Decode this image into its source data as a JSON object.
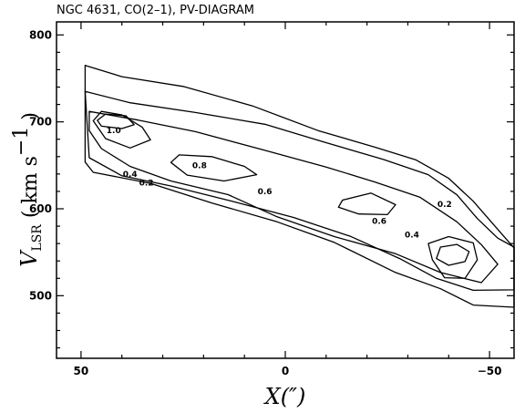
{
  "chart_data": {
    "type": "contour",
    "title": "NGC 4631, CO(2–1), PV-DIAGRAM",
    "xlabel": "X(″)",
    "ylabel": {
      "main": "V",
      "sub": "LSR",
      "unit_open": " ( km s",
      "unit_exp": "−1",
      "unit_close": " )"
    },
    "xlim": [
      56,
      -56
    ],
    "ylim": [
      428,
      815
    ],
    "x_ticks": [
      50,
      0,
      -50
    ],
    "x_tick_labels": [
      "50",
      "0",
      "−50"
    ],
    "y_ticks": [
      500,
      600,
      700,
      800
    ],
    "y_tick_labels": [
      "500",
      "600",
      "700",
      "800"
    ],
    "contour_levels": [
      0.2,
      0.4,
      0.6,
      0.8,
      1.0
    ],
    "contour_labels": [
      {
        "text": "1.0",
        "x": 42,
        "y": 690
      },
      {
        "text": "0.8",
        "x": 21,
        "y": 650
      },
      {
        "text": "0.6",
        "x": 5,
        "y": 620
      },
      {
        "text": "0.4",
        "x": 38,
        "y": 640
      },
      {
        "text": "0.2",
        "x": 34,
        "y": 630
      },
      {
        "text": "0.6",
        "x": -23,
        "y": 586
      },
      {
        "text": "0.4",
        "x": -31,
        "y": 570
      },
      {
        "text": "0.2",
        "x": -39,
        "y": 605
      }
    ],
    "contours": [
      {
        "level": 0.2,
        "points": [
          [
            49,
            765
          ],
          [
            40,
            752
          ],
          [
            25,
            742
          ],
          [
            8,
            717
          ],
          [
            -8,
            690
          ],
          [
            -22,
            672
          ],
          [
            -32,
            655
          ],
          [
            -40,
            635
          ],
          [
            -46,
            610
          ],
          [
            -52,
            575
          ],
          [
            -56,
            555
          ],
          [
            -56,
            488
          ],
          [
            -46,
            488
          ],
          [
            -38,
            508
          ],
          [
            -27,
            528
          ],
          [
            -12,
            560
          ],
          [
            2,
            585
          ],
          [
            18,
            608
          ],
          [
            33,
            628
          ],
          [
            47,
            642
          ],
          [
            49,
            655
          ]
        ]
      },
      {
        "level": 0.4,
        "points": [
          [
            49,
            735
          ],
          [
            38,
            722
          ],
          [
            22,
            712
          ],
          [
            5,
            696
          ],
          [
            -10,
            676
          ],
          [
            -24,
            658
          ],
          [
            -35,
            638
          ],
          [
            -42,
            616
          ],
          [
            -47,
            590
          ],
          [
            -52,
            565
          ],
          [
            -56,
            556
          ],
          [
            -56,
            508
          ],
          [
            -46,
            505
          ],
          [
            -37,
            520
          ],
          [
            -28,
            544
          ],
          [
            -16,
            567
          ],
          [
            -2,
            590
          ],
          [
            13,
            610
          ],
          [
            28,
            625
          ],
          [
            40,
            638
          ],
          [
            48,
            660
          ]
        ]
      },
      {
        "level": 0.6,
        "points": [
          [
            48,
            712
          ],
          [
            36,
            702
          ],
          [
            22,
            690
          ],
          [
            5,
            666
          ],
          [
            -10,
            648
          ],
          [
            -22,
            632
          ],
          [
            -33,
            612
          ],
          [
            -42,
            585
          ],
          [
            -48,
            560
          ],
          [
            -52,
            535
          ],
          [
            -48,
            515
          ],
          [
            -38,
            528
          ],
          [
            -27,
            547
          ],
          [
            -12,
            568
          ],
          [
            2,
            592
          ],
          [
            14,
            615
          ],
          [
            28,
            632
          ],
          [
            38,
            650
          ],
          [
            45,
            668
          ],
          [
            48,
            690
          ]
        ]
      },
      {
        "level": 0.6,
        "points": [
          [
            -14,
            610
          ],
          [
            -21,
            618
          ],
          [
            -27,
            606
          ],
          [
            -25,
            592
          ],
          [
            -18,
            594
          ],
          [
            -13,
            603
          ]
        ]
      },
      {
        "level": 0.8,
        "points": [
          [
            45,
            712
          ],
          [
            40,
            708
          ],
          [
            35,
            695
          ],
          [
            33,
            678
          ],
          [
            38,
            670
          ],
          [
            44,
            682
          ],
          [
            47,
            700
          ]
        ]
      },
      {
        "level": 0.8,
        "points": [
          [
            26,
            662
          ],
          [
            18,
            660
          ],
          [
            10,
            650
          ],
          [
            7,
            638
          ],
          [
            15,
            632
          ],
          [
            24,
            640
          ],
          [
            28,
            652
          ]
        ]
      },
      {
        "level": 0.8,
        "points": [
          [
            -35,
            560
          ],
          [
            -40,
            568
          ],
          [
            -46,
            562
          ],
          [
            -47,
            540
          ],
          [
            -44,
            520
          ],
          [
            -39,
            522
          ],
          [
            -36,
            540
          ]
        ]
      },
      {
        "level": 1.0,
        "points": [
          [
            44,
            709
          ],
          [
            39,
            707
          ],
          [
            37,
            698
          ],
          [
            40,
            691
          ],
          [
            45,
            695
          ],
          [
            46,
            703
          ]
        ]
      },
      {
        "level": 1.0,
        "points": [
          [
            -38,
            556
          ],
          [
            -42,
            559
          ],
          [
            -45,
            552
          ],
          [
            -44,
            538
          ],
          [
            -40,
            535
          ],
          [
            -37,
            544
          ]
        ]
      }
    ]
  }
}
